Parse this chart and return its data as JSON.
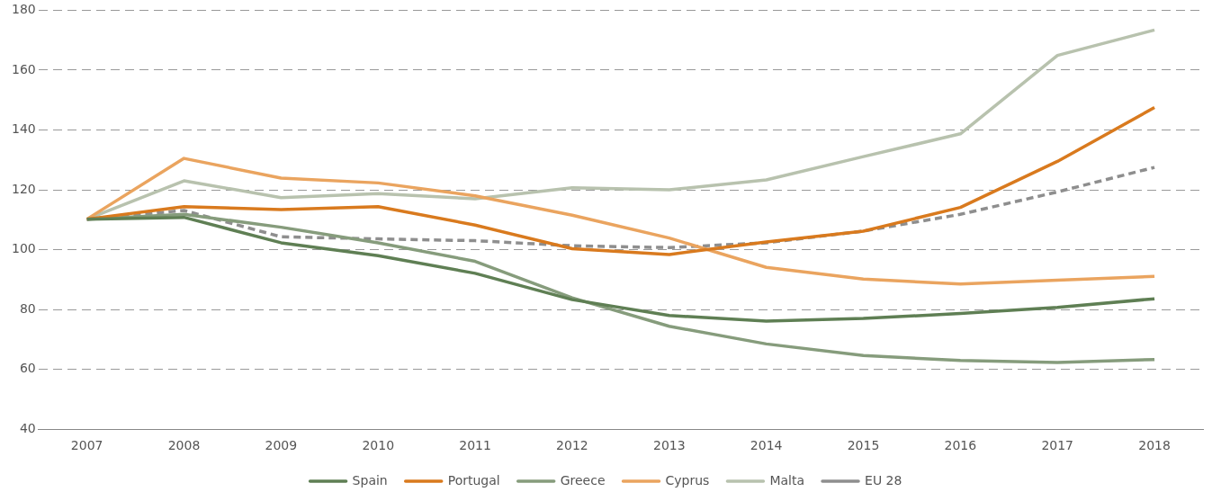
{
  "chart_data": {
    "type": "line",
    "categories": [
      "2007",
      "2008",
      "2009",
      "2010",
      "2011",
      "2012",
      "2013",
      "2014",
      "2015",
      "2016",
      "2017",
      "2018"
    ],
    "series": [
      {
        "name": "Spain",
        "color": "#5f7f54",
        "values": [
          110.2,
          110.8,
          102.3,
          98.0,
          92.1,
          83.3,
          78.0,
          76.1,
          77.0,
          78.7,
          80.7,
          83.6
        ]
      },
      {
        "name": "Portugal",
        "color": "#d97a1e",
        "values": [
          110.2,
          114.4,
          113.4,
          114.4,
          108.2,
          100.3,
          98.4,
          102.6,
          106.2,
          114.1,
          129.5,
          147.5
        ]
      },
      {
        "name": "Greece",
        "color": "#869c7c",
        "values": [
          110.2,
          111.8,
          107.5,
          102.3,
          96.1,
          83.9,
          74.4,
          68.5,
          64.6,
          63.0,
          62.3,
          63.3
        ]
      },
      {
        "name": "Cyprus",
        "color": "#eaa45f",
        "values": [
          110.2,
          130.5,
          123.9,
          122.3,
          118.0,
          111.5,
          103.9,
          94.1,
          90.2,
          88.5,
          89.8,
          91.1
        ]
      },
      {
        "name": "Malta",
        "color": "#b8c2ae",
        "values": [
          110.2,
          123.0,
          117.4,
          118.7,
          117.0,
          120.7,
          120.0,
          123.3,
          131.1,
          138.7,
          164.9,
          173.4
        ]
      },
      {
        "name": "EU 28",
        "color": "#8e8e8e",
        "line_style": "dashed",
        "values": [
          110.2,
          113.1,
          104.3,
          103.6,
          103.0,
          101.3,
          100.7,
          102.3,
          106.2,
          111.8,
          119.3,
          127.5
        ]
      }
    ],
    "ylim": [
      40,
      180
    ],
    "yticks": [
      40,
      60,
      80,
      100,
      120,
      140,
      160,
      180
    ],
    "grid": "y",
    "legend": "bottom",
    "marker": "none"
  }
}
